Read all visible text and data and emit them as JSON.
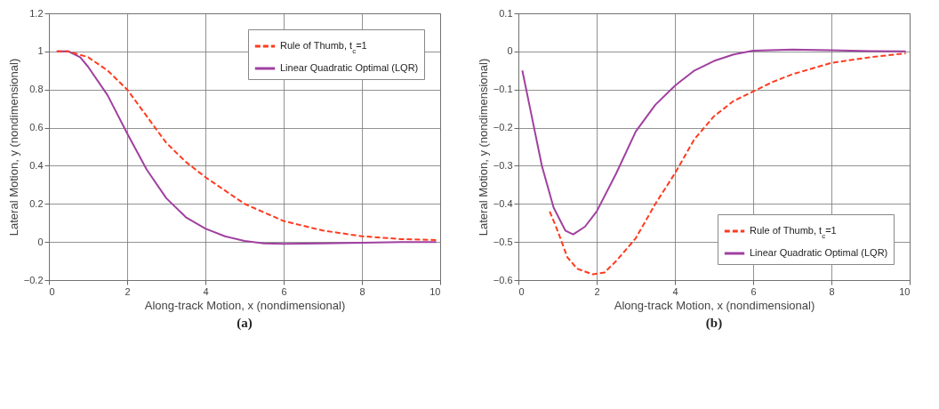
{
  "chart_data": [
    {
      "type": "line",
      "title": "(a)",
      "xlabel": "Along-track Motion, x (nondimensional)",
      "ylabel": "Lateral Motion, y (nondimensional)",
      "xlim": [
        0,
        10
      ],
      "ylim": [
        -0.2,
        1.2
      ],
      "xticks": [
        0,
        2,
        4,
        6,
        8,
        10
      ],
      "yticks": [
        -0.2,
        0,
        0.2,
        0.4,
        0.6,
        0.8,
        1,
        1.2
      ],
      "grid": true,
      "legend": "top right",
      "series": [
        {
          "name": "Rule of Thumb, t$_{c}$=1",
          "color": "#ff3b1f",
          "line_style": "dashed",
          "x": [
            0.2,
            0.5,
            1,
            1.5,
            2,
            2.5,
            3,
            3.5,
            4,
            5,
            6,
            7,
            8,
            9,
            9.9
          ],
          "values": [
            1,
            1,
            0.97,
            0.9,
            0.8,
            0.66,
            0.52,
            0.42,
            0.34,
            0.2,
            0.11,
            0.06,
            0.03,
            0.015,
            0.01
          ]
        },
        {
          "name": "Linear Quadratic Optimal (LQR)",
          "color": "#a040a0",
          "line_style": "solid",
          "x": [
            0.2,
            0.5,
            0.8,
            1,
            1.5,
            2,
            2.5,
            3,
            3.5,
            4,
            4.5,
            5,
            5.5,
            6,
            7,
            8,
            9,
            9.9
          ],
          "values": [
            1,
            1,
            0.97,
            0.92,
            0.77,
            0.57,
            0.38,
            0.23,
            0.13,
            0.07,
            0.03,
            0.005,
            -0.008,
            -0.01,
            -0.008,
            -0.004,
            -0.001,
            0
          ]
        }
      ]
    },
    {
      "type": "line",
      "title": "(b)",
      "xlabel": "Along-track Motion, x (nondimensional)",
      "ylabel": "Lateral Motion, y (nondimensional)",
      "xlim": [
        0,
        10
      ],
      "ylim": [
        -0.6,
        0.1
      ],
      "xticks": [
        0,
        2,
        4,
        6,
        8,
        10
      ],
      "yticks": [
        -0.6,
        -0.5,
        -0.4,
        -0.3,
        -0.2,
        -0.1,
        0,
        0.1
      ],
      "grid": true,
      "legend": "bottom right",
      "series": [
        {
          "name": "Rule of Thumb, t$_{c}$=1",
          "color": "#ff3b1f",
          "line_style": "dashed",
          "x": [
            0.8,
            1,
            1.25,
            1.5,
            1.9,
            2.2,
            2.5,
            3,
            3.5,
            4,
            4.5,
            5,
            5.5,
            6,
            6.5,
            7,
            8,
            9,
            9.9
          ],
          "values": [
            -0.42,
            -0.47,
            -0.54,
            -0.57,
            -0.585,
            -0.58,
            -0.55,
            -0.49,
            -0.4,
            -0.32,
            -0.23,
            -0.17,
            -0.13,
            -0.105,
            -0.08,
            -0.06,
            -0.03,
            -0.015,
            -0.005
          ]
        },
        {
          "name": "Linear Quadratic Optimal (LQR)",
          "color": "#a040a0",
          "line_style": "solid",
          "x": [
            0.1,
            0.3,
            0.6,
            0.9,
            1.2,
            1.4,
            1.7,
            2,
            2.5,
            3,
            3.5,
            4,
            4.5,
            5,
            5.5,
            6,
            7,
            8,
            9,
            9.9
          ],
          "values": [
            -0.05,
            -0.15,
            -0.3,
            -0.41,
            -0.47,
            -0.48,
            -0.46,
            -0.42,
            -0.32,
            -0.21,
            -0.14,
            -0.09,
            -0.05,
            -0.025,
            -0.008,
            0.002,
            0.005,
            0.003,
            0.001,
            0
          ]
        }
      ]
    }
  ]
}
